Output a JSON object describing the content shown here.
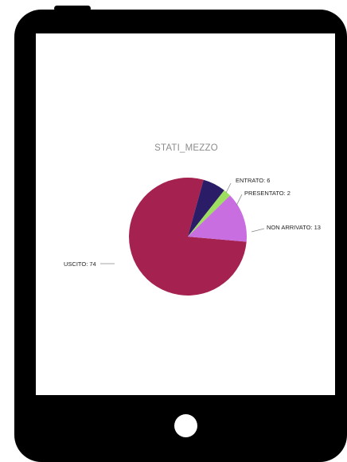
{
  "colors": {
    "device": "#000000",
    "screen": "#ffffff",
    "home_button": "#ffffff",
    "leader_line": "#888888"
  },
  "chart_data": {
    "type": "pie",
    "title": "STATI_MEZZO",
    "slices": [
      {
        "name": "USCITO",
        "value": 74,
        "label": "USCITO: 74",
        "color": "#a52250"
      },
      {
        "name": "ENTRATO",
        "value": 6,
        "label": "ENTRATO: 6",
        "color": "#2a1c66"
      },
      {
        "name": "PRESENTATO",
        "value": 2,
        "label": "PRESENTATO: 2",
        "color": "#9ddd60"
      },
      {
        "name": "NON ARRIVATO",
        "value": 13,
        "label": "NON ARRIVATO: 13",
        "color": "#c86ee0"
      }
    ],
    "legend": "none",
    "labels": "outside with leader lines"
  }
}
